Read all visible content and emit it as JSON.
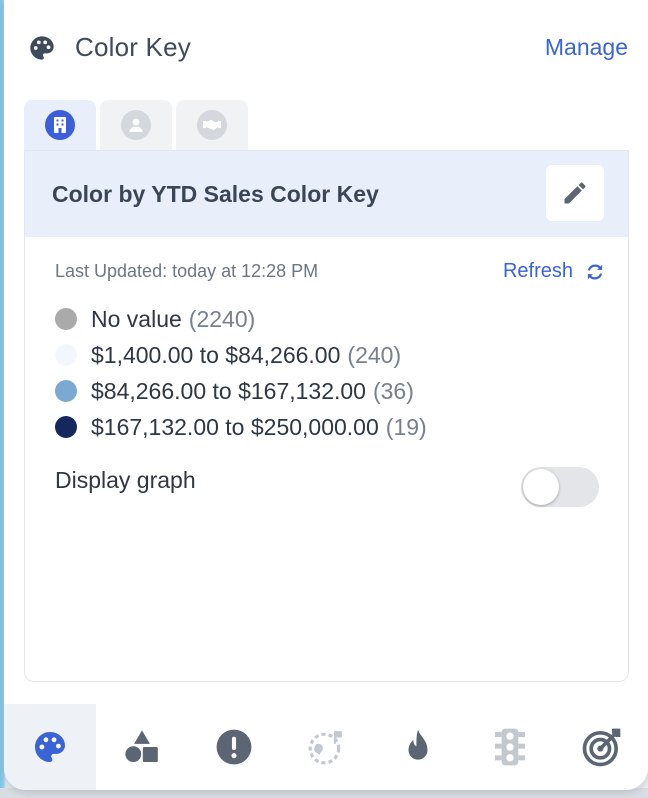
{
  "header": {
    "title": "Color Key",
    "manage_label": "Manage",
    "icon": "palette-icon"
  },
  "tabs": [
    {
      "icon": "building-icon",
      "active": true
    },
    {
      "icon": "person-icon",
      "active": false
    },
    {
      "icon": "handshake-icon",
      "active": false
    }
  ],
  "card": {
    "title": "Color by YTD Sales Color Key",
    "edit_icon": "pencil-icon",
    "last_updated": "Last Updated: today at 12:28 PM",
    "refresh_label": "Refresh",
    "legend": [
      {
        "label": "No value",
        "count": "(2240)",
        "color": "#aaaaaa"
      },
      {
        "label": "$1,400.00 to $84,266.00",
        "count": "(240)",
        "color": "#f3f7fd"
      },
      {
        "label": "$84,266.00 to $167,132.00",
        "count": "(36)",
        "color": "#7aa9d4"
      },
      {
        "label": "$167,132.00 to $250,000.00",
        "count": "(19)",
        "color": "#14285e"
      }
    ],
    "display_graph_label": "Display graph",
    "display_graph_on": false
  },
  "bottom_bar": [
    {
      "icon": "palette-icon",
      "active": true
    },
    {
      "icon": "shapes-icon",
      "active": false
    },
    {
      "icon": "alert-icon",
      "active": false
    },
    {
      "icon": "globe-pin-icon",
      "active": false
    },
    {
      "icon": "fire-icon",
      "active": false
    },
    {
      "icon": "traffic-light-icon",
      "active": false
    },
    {
      "icon": "target-icon",
      "active": false
    }
  ],
  "colors": {
    "accent": "#3a63d6",
    "header_bg": "#e9eefb",
    "icon_gray": "#5b6574",
    "icon_light": "#c3c8cf"
  }
}
